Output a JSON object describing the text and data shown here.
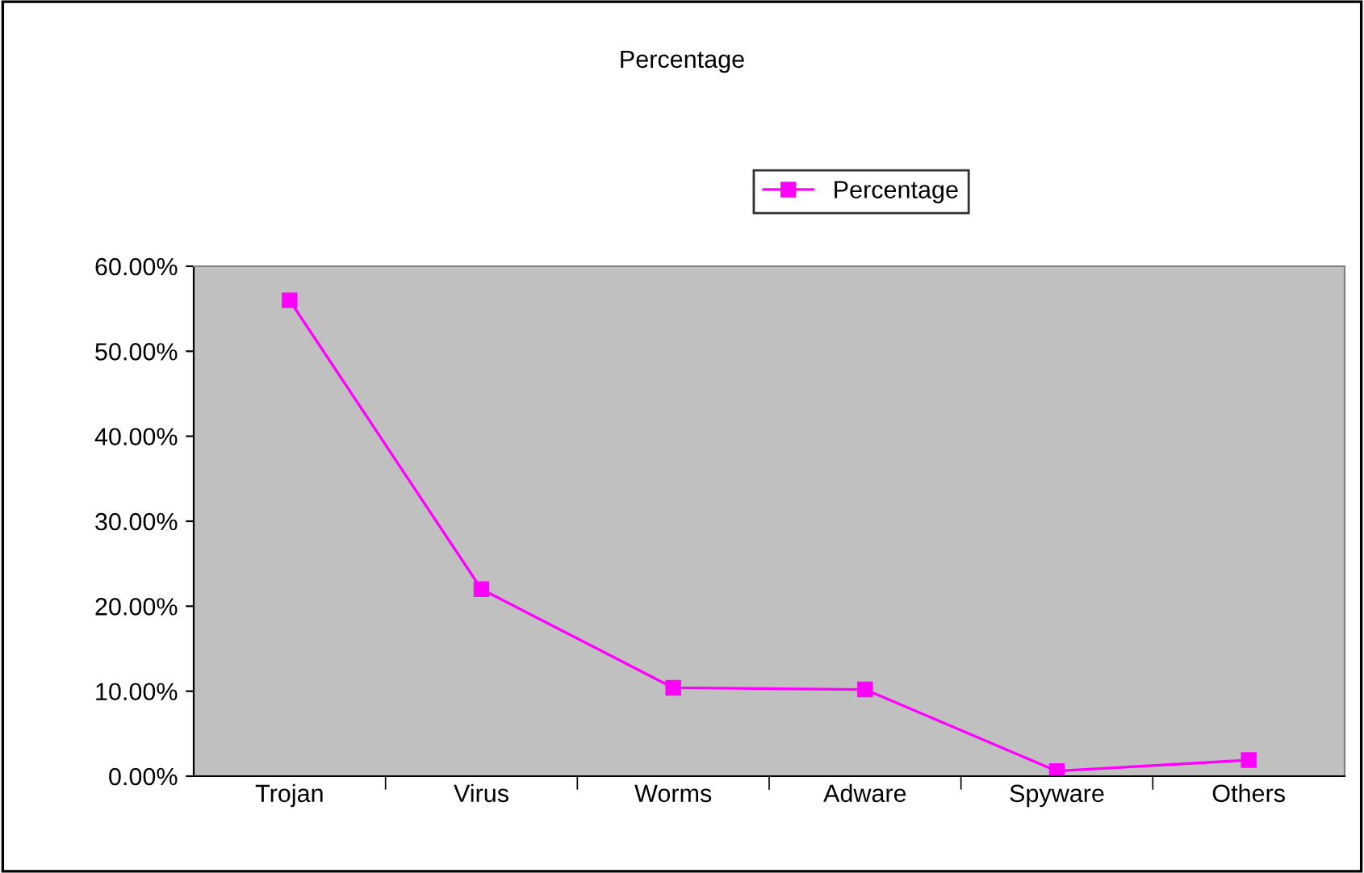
{
  "chart_data": {
    "type": "line",
    "title": "Percentage",
    "categories": [
      "Trojan",
      "Virus",
      "Worms",
      "Adware",
      "Spyware",
      "Others"
    ],
    "series": [
      {
        "name": "Percentage",
        "color": "#ff00ff",
        "values": [
          56,
          22,
          10.4,
          10.2,
          0.6,
          1.9
        ]
      }
    ],
    "ylim": [
      0,
      60
    ],
    "yticks": [
      {
        "value": 0,
        "label": "0.00%"
      },
      {
        "value": 10,
        "label": "10.00%"
      },
      {
        "value": 20,
        "label": "20.00%"
      },
      {
        "value": 30,
        "label": "30.00%"
      },
      {
        "value": 40,
        "label": "40.00%"
      },
      {
        "value": 50,
        "label": "50.00%"
      },
      {
        "value": 60,
        "label": "60.00%"
      }
    ],
    "grid": false,
    "legend": "top",
    "marker": "square",
    "line_style": "solid"
  }
}
